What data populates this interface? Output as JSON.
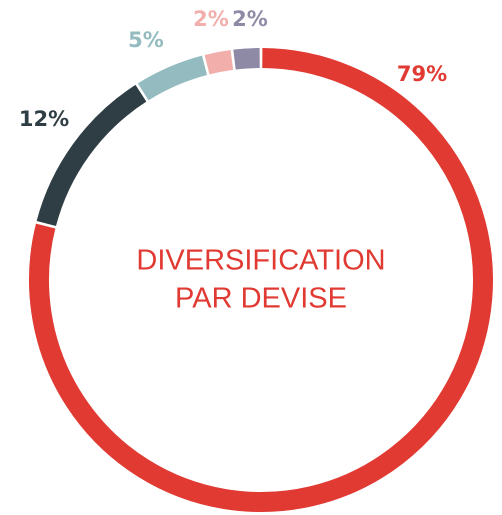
{
  "chart_data": {
    "type": "pie",
    "title": [
      "DIVERSIFICATION",
      "PAR DEVISE"
    ],
    "values": [
      79,
      12,
      5,
      2,
      2
    ],
    "value_labels": [
      "79%",
      "12%",
      "5%",
      "2%",
      "2%"
    ],
    "colors": [
      "#e03a33",
      "#2f3e44",
      "#94bcc0",
      "#f2aeab",
      "#8e8aa6"
    ]
  }
}
